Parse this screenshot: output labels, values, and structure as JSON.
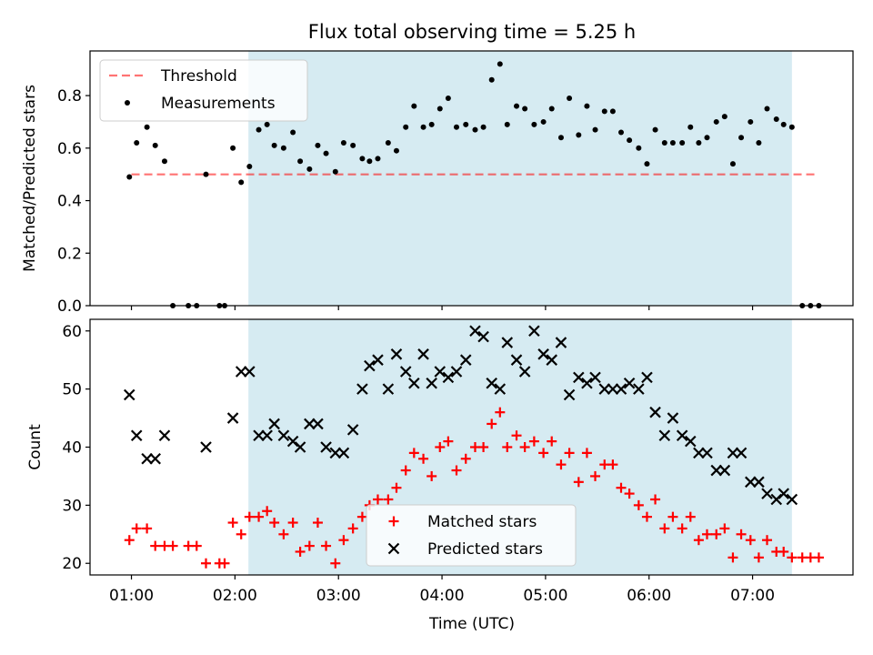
{
  "title": "Flux total observing time = 5.25 h",
  "colors": {
    "shade": "#add8e6",
    "threshold": "#ff0000",
    "measurements": "#000000",
    "matched": "#ff0000",
    "predicted": "#000000"
  },
  "chart_data": [
    {
      "type": "scatter",
      "ylabel": "Matched/Predicted stars",
      "xlim": [
        0.6,
        7.97
      ],
      "ylim": [
        0.0,
        0.97
      ],
      "yticks": [
        0.0,
        0.2,
        0.4,
        0.6,
        0.8
      ],
      "ytick_labels": [
        "0.0",
        "0.2",
        "0.4",
        "0.6",
        "0.8"
      ],
      "shaded_span": [
        2.13,
        7.38
      ],
      "legend": [
        "Threshold",
        "Measurements"
      ],
      "legend_position": "top-left",
      "threshold": {
        "name": "Threshold",
        "y": 0.5,
        "x_range": [
          1.0,
          7.62
        ]
      },
      "series": [
        {
          "name": "Measurements",
          "points": [
            [
              0.98,
              0.49
            ],
            [
              1.05,
              0.62
            ],
            [
              1.15,
              0.68
            ],
            [
              1.23,
              0.61
            ],
            [
              1.32,
              0.55
            ],
            [
              1.4,
              0.0
            ],
            [
              1.55,
              0.0
            ],
            [
              1.63,
              0.0
            ],
            [
              1.72,
              0.5
            ],
            [
              1.85,
              0.0
            ],
            [
              1.9,
              0.0
            ],
            [
              1.98,
              0.6
            ],
            [
              2.06,
              0.47
            ],
            [
              2.14,
              0.53
            ],
            [
              2.23,
              0.67
            ],
            [
              2.31,
              0.69
            ],
            [
              2.38,
              0.61
            ],
            [
              2.47,
              0.6
            ],
            [
              2.56,
              0.66
            ],
            [
              2.63,
              0.55
            ],
            [
              2.72,
              0.52
            ],
            [
              2.8,
              0.61
            ],
            [
              2.88,
              0.58
            ],
            [
              2.97,
              0.51
            ],
            [
              3.05,
              0.62
            ],
            [
              3.14,
              0.61
            ],
            [
              3.23,
              0.56
            ],
            [
              3.3,
              0.55
            ],
            [
              3.38,
              0.56
            ],
            [
              3.48,
              0.62
            ],
            [
              3.56,
              0.59
            ],
            [
              3.65,
              0.68
            ],
            [
              3.73,
              0.76
            ],
            [
              3.82,
              0.68
            ],
            [
              3.9,
              0.69
            ],
            [
              3.98,
              0.75
            ],
            [
              4.06,
              0.79
            ],
            [
              4.14,
              0.68
            ],
            [
              4.23,
              0.69
            ],
            [
              4.32,
              0.67
            ],
            [
              4.4,
              0.68
            ],
            [
              4.48,
              0.86
            ],
            [
              4.56,
              0.92
            ],
            [
              4.63,
              0.69
            ],
            [
              4.72,
              0.76
            ],
            [
              4.8,
              0.75
            ],
            [
              4.89,
              0.69
            ],
            [
              4.98,
              0.7
            ],
            [
              5.06,
              0.75
            ],
            [
              5.15,
              0.64
            ],
            [
              5.23,
              0.79
            ],
            [
              5.32,
              0.65
            ],
            [
              5.4,
              0.76
            ],
            [
              5.48,
              0.67
            ],
            [
              5.57,
              0.74
            ],
            [
              5.65,
              0.74
            ],
            [
              5.73,
              0.66
            ],
            [
              5.81,
              0.63
            ],
            [
              5.9,
              0.6
            ],
            [
              5.98,
              0.54
            ],
            [
              6.06,
              0.67
            ],
            [
              6.15,
              0.62
            ],
            [
              6.23,
              0.62
            ],
            [
              6.32,
              0.62
            ],
            [
              6.4,
              0.68
            ],
            [
              6.48,
              0.62
            ],
            [
              6.56,
              0.64
            ],
            [
              6.65,
              0.7
            ],
            [
              6.73,
              0.72
            ],
            [
              6.81,
              0.54
            ],
            [
              6.89,
              0.64
            ],
            [
              6.98,
              0.7
            ],
            [
              7.06,
              0.62
            ],
            [
              7.14,
              0.75
            ],
            [
              7.23,
              0.71
            ],
            [
              7.3,
              0.69
            ],
            [
              7.38,
              0.68
            ],
            [
              7.48,
              0.0
            ],
            [
              7.56,
              0.0
            ],
            [
              7.64,
              0.0
            ]
          ]
        }
      ]
    },
    {
      "type": "scatter",
      "xlabel": "Time (UTC)",
      "ylabel": "Count",
      "xlim": [
        0.6,
        7.97
      ],
      "ylim": [
        18.0,
        62.0
      ],
      "xticks": [
        1,
        2,
        3,
        4,
        5,
        6,
        7
      ],
      "xtick_labels": [
        "01:00",
        "02:00",
        "03:00",
        "04:00",
        "05:00",
        "06:00",
        "07:00"
      ],
      "yticks": [
        20,
        30,
        40,
        50,
        60
      ],
      "ytick_labels": [
        "20",
        "30",
        "40",
        "50",
        "60"
      ],
      "shaded_span": [
        2.13,
        7.38
      ],
      "legend": [
        "Matched stars",
        "Predicted stars"
      ],
      "legend_position": "bottom-center",
      "series": [
        {
          "name": "Matched stars",
          "marker": "plus",
          "points": [
            [
              0.98,
              24
            ],
            [
              1.05,
              26
            ],
            [
              1.15,
              26
            ],
            [
              1.23,
              23
            ],
            [
              1.32,
              23
            ],
            [
              1.4,
              23
            ],
            [
              1.55,
              23
            ],
            [
              1.63,
              23
            ],
            [
              1.72,
              20
            ],
            [
              1.85,
              20
            ],
            [
              1.9,
              20
            ],
            [
              1.98,
              27
            ],
            [
              2.06,
              25
            ],
            [
              2.14,
              28
            ],
            [
              2.23,
              28
            ],
            [
              2.31,
              29
            ],
            [
              2.38,
              27
            ],
            [
              2.47,
              25
            ],
            [
              2.56,
              27
            ],
            [
              2.63,
              22
            ],
            [
              2.72,
              23
            ],
            [
              2.8,
              27
            ],
            [
              2.88,
              23
            ],
            [
              2.97,
              20
            ],
            [
              3.05,
              24
            ],
            [
              3.14,
              26
            ],
            [
              3.23,
              28
            ],
            [
              3.3,
              30
            ],
            [
              3.38,
              31
            ],
            [
              3.48,
              31
            ],
            [
              3.56,
              33
            ],
            [
              3.65,
              36
            ],
            [
              3.73,
              39
            ],
            [
              3.82,
              38
            ],
            [
              3.9,
              35
            ],
            [
              3.98,
              40
            ],
            [
              4.06,
              41
            ],
            [
              4.14,
              36
            ],
            [
              4.23,
              38
            ],
            [
              4.32,
              40
            ],
            [
              4.4,
              40
            ],
            [
              4.48,
              44
            ],
            [
              4.56,
              46
            ],
            [
              4.63,
              40
            ],
            [
              4.72,
              42
            ],
            [
              4.8,
              40
            ],
            [
              4.89,
              41
            ],
            [
              4.98,
              39
            ],
            [
              5.06,
              41
            ],
            [
              5.15,
              37
            ],
            [
              5.23,
              39
            ],
            [
              5.32,
              34
            ],
            [
              5.4,
              39
            ],
            [
              5.48,
              35
            ],
            [
              5.57,
              37
            ],
            [
              5.65,
              37
            ],
            [
              5.73,
              33
            ],
            [
              5.81,
              32
            ],
            [
              5.9,
              30
            ],
            [
              5.98,
              28
            ],
            [
              6.06,
              31
            ],
            [
              6.15,
              26
            ],
            [
              6.23,
              28
            ],
            [
              6.32,
              26
            ],
            [
              6.4,
              28
            ],
            [
              6.48,
              24
            ],
            [
              6.56,
              25
            ],
            [
              6.65,
              25
            ],
            [
              6.73,
              26
            ],
            [
              6.81,
              21
            ],
            [
              6.89,
              25
            ],
            [
              6.98,
              24
            ],
            [
              7.06,
              21
            ],
            [
              7.14,
              24
            ],
            [
              7.23,
              22
            ],
            [
              7.3,
              22
            ],
            [
              7.38,
              21
            ],
            [
              7.48,
              21
            ],
            [
              7.56,
              21
            ],
            [
              7.64,
              21
            ]
          ]
        },
        {
          "name": "Predicted stars",
          "marker": "x",
          "points": [
            [
              0.98,
              49
            ],
            [
              1.05,
              42
            ],
            [
              1.15,
              38
            ],
            [
              1.23,
              38
            ],
            [
              1.32,
              42
            ],
            [
              1.72,
              40
            ],
            [
              1.98,
              45
            ],
            [
              2.06,
              53
            ],
            [
              2.14,
              53
            ],
            [
              2.23,
              42
            ],
            [
              2.31,
              42
            ],
            [
              2.38,
              44
            ],
            [
              2.47,
              42
            ],
            [
              2.56,
              41
            ],
            [
              2.63,
              40
            ],
            [
              2.72,
              44
            ],
            [
              2.8,
              44
            ],
            [
              2.88,
              40
            ],
            [
              2.97,
              39
            ],
            [
              3.05,
              39
            ],
            [
              3.14,
              43
            ],
            [
              3.23,
              50
            ],
            [
              3.3,
              54
            ],
            [
              3.38,
              55
            ],
            [
              3.48,
              50
            ],
            [
              3.56,
              56
            ],
            [
              3.65,
              53
            ],
            [
              3.73,
              51
            ],
            [
              3.82,
              56
            ],
            [
              3.9,
              51
            ],
            [
              3.98,
              53
            ],
            [
              4.06,
              52
            ],
            [
              4.14,
              53
            ],
            [
              4.23,
              55
            ],
            [
              4.32,
              60
            ],
            [
              4.4,
              59
            ],
            [
              4.48,
              51
            ],
            [
              4.56,
              50
            ],
            [
              4.63,
              58
            ],
            [
              4.72,
              55
            ],
            [
              4.8,
              53
            ],
            [
              4.89,
              60
            ],
            [
              4.98,
              56
            ],
            [
              5.06,
              55
            ],
            [
              5.15,
              58
            ],
            [
              5.23,
              49
            ],
            [
              5.32,
              52
            ],
            [
              5.4,
              51
            ],
            [
              5.48,
              52
            ],
            [
              5.57,
              50
            ],
            [
              5.65,
              50
            ],
            [
              5.73,
              50
            ],
            [
              5.81,
              51
            ],
            [
              5.9,
              50
            ],
            [
              5.98,
              52
            ],
            [
              6.06,
              46
            ],
            [
              6.15,
              42
            ],
            [
              6.23,
              45
            ],
            [
              6.32,
              42
            ],
            [
              6.4,
              41
            ],
            [
              6.48,
              39
            ],
            [
              6.56,
              39
            ],
            [
              6.65,
              36
            ],
            [
              6.73,
              36
            ],
            [
              6.81,
              39
            ],
            [
              6.89,
              39
            ],
            [
              6.98,
              34
            ],
            [
              7.06,
              34
            ],
            [
              7.14,
              32
            ],
            [
              7.23,
              31
            ],
            [
              7.3,
              32
            ],
            [
              7.38,
              31
            ]
          ]
        }
      ]
    }
  ]
}
